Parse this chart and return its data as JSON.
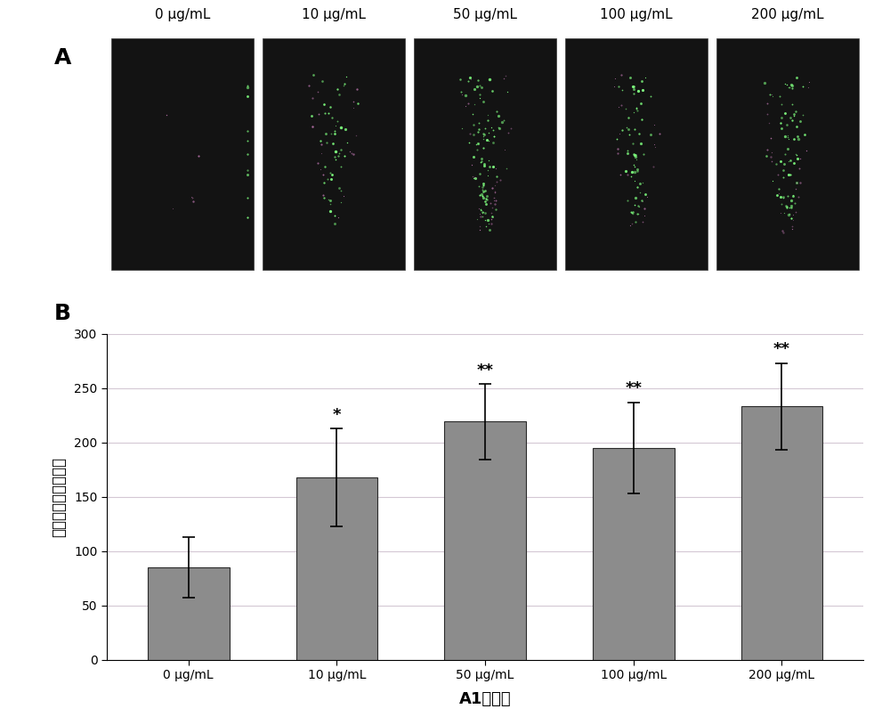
{
  "panel_A_label": "A",
  "panel_B_label": "B",
  "top_labels": [
    "0 μg/mL",
    "10 μg/mL",
    "50 μg/mL",
    "100 μg/mL",
    "200 μg/mL"
  ],
  "bar_categories": [
    "0 μg/mL",
    "10 μg/mL",
    "50 μg/mL",
    "100 μg/mL",
    "200 μg/mL"
  ],
  "bar_values": [
    85,
    168,
    219,
    195,
    233
  ],
  "bar_errors": [
    28,
    45,
    35,
    42,
    40
  ],
  "bar_color": "#8c8c8c",
  "bar_edge_color": "#2a2a2a",
  "significance_labels": [
    "",
    "*",
    "**",
    "**",
    "**"
  ],
  "ylabel": "纵切面根尖干细胞数",
  "xlabel": "A1的浓度",
  "ylim": [
    0,
    300
  ],
  "yticks": [
    0,
    50,
    100,
    150,
    200,
    250,
    300
  ],
  "grid_color": "#c0c0c0",
  "background_color": "#ffffff",
  "figure_background": "#ffffff",
  "bar_width": 0.55,
  "image_bg_color": "#111111",
  "n_green_dots": [
    10,
    50,
    100,
    65,
    75
  ],
  "n_pink_dots": [
    6,
    20,
    35,
    22,
    28
  ]
}
